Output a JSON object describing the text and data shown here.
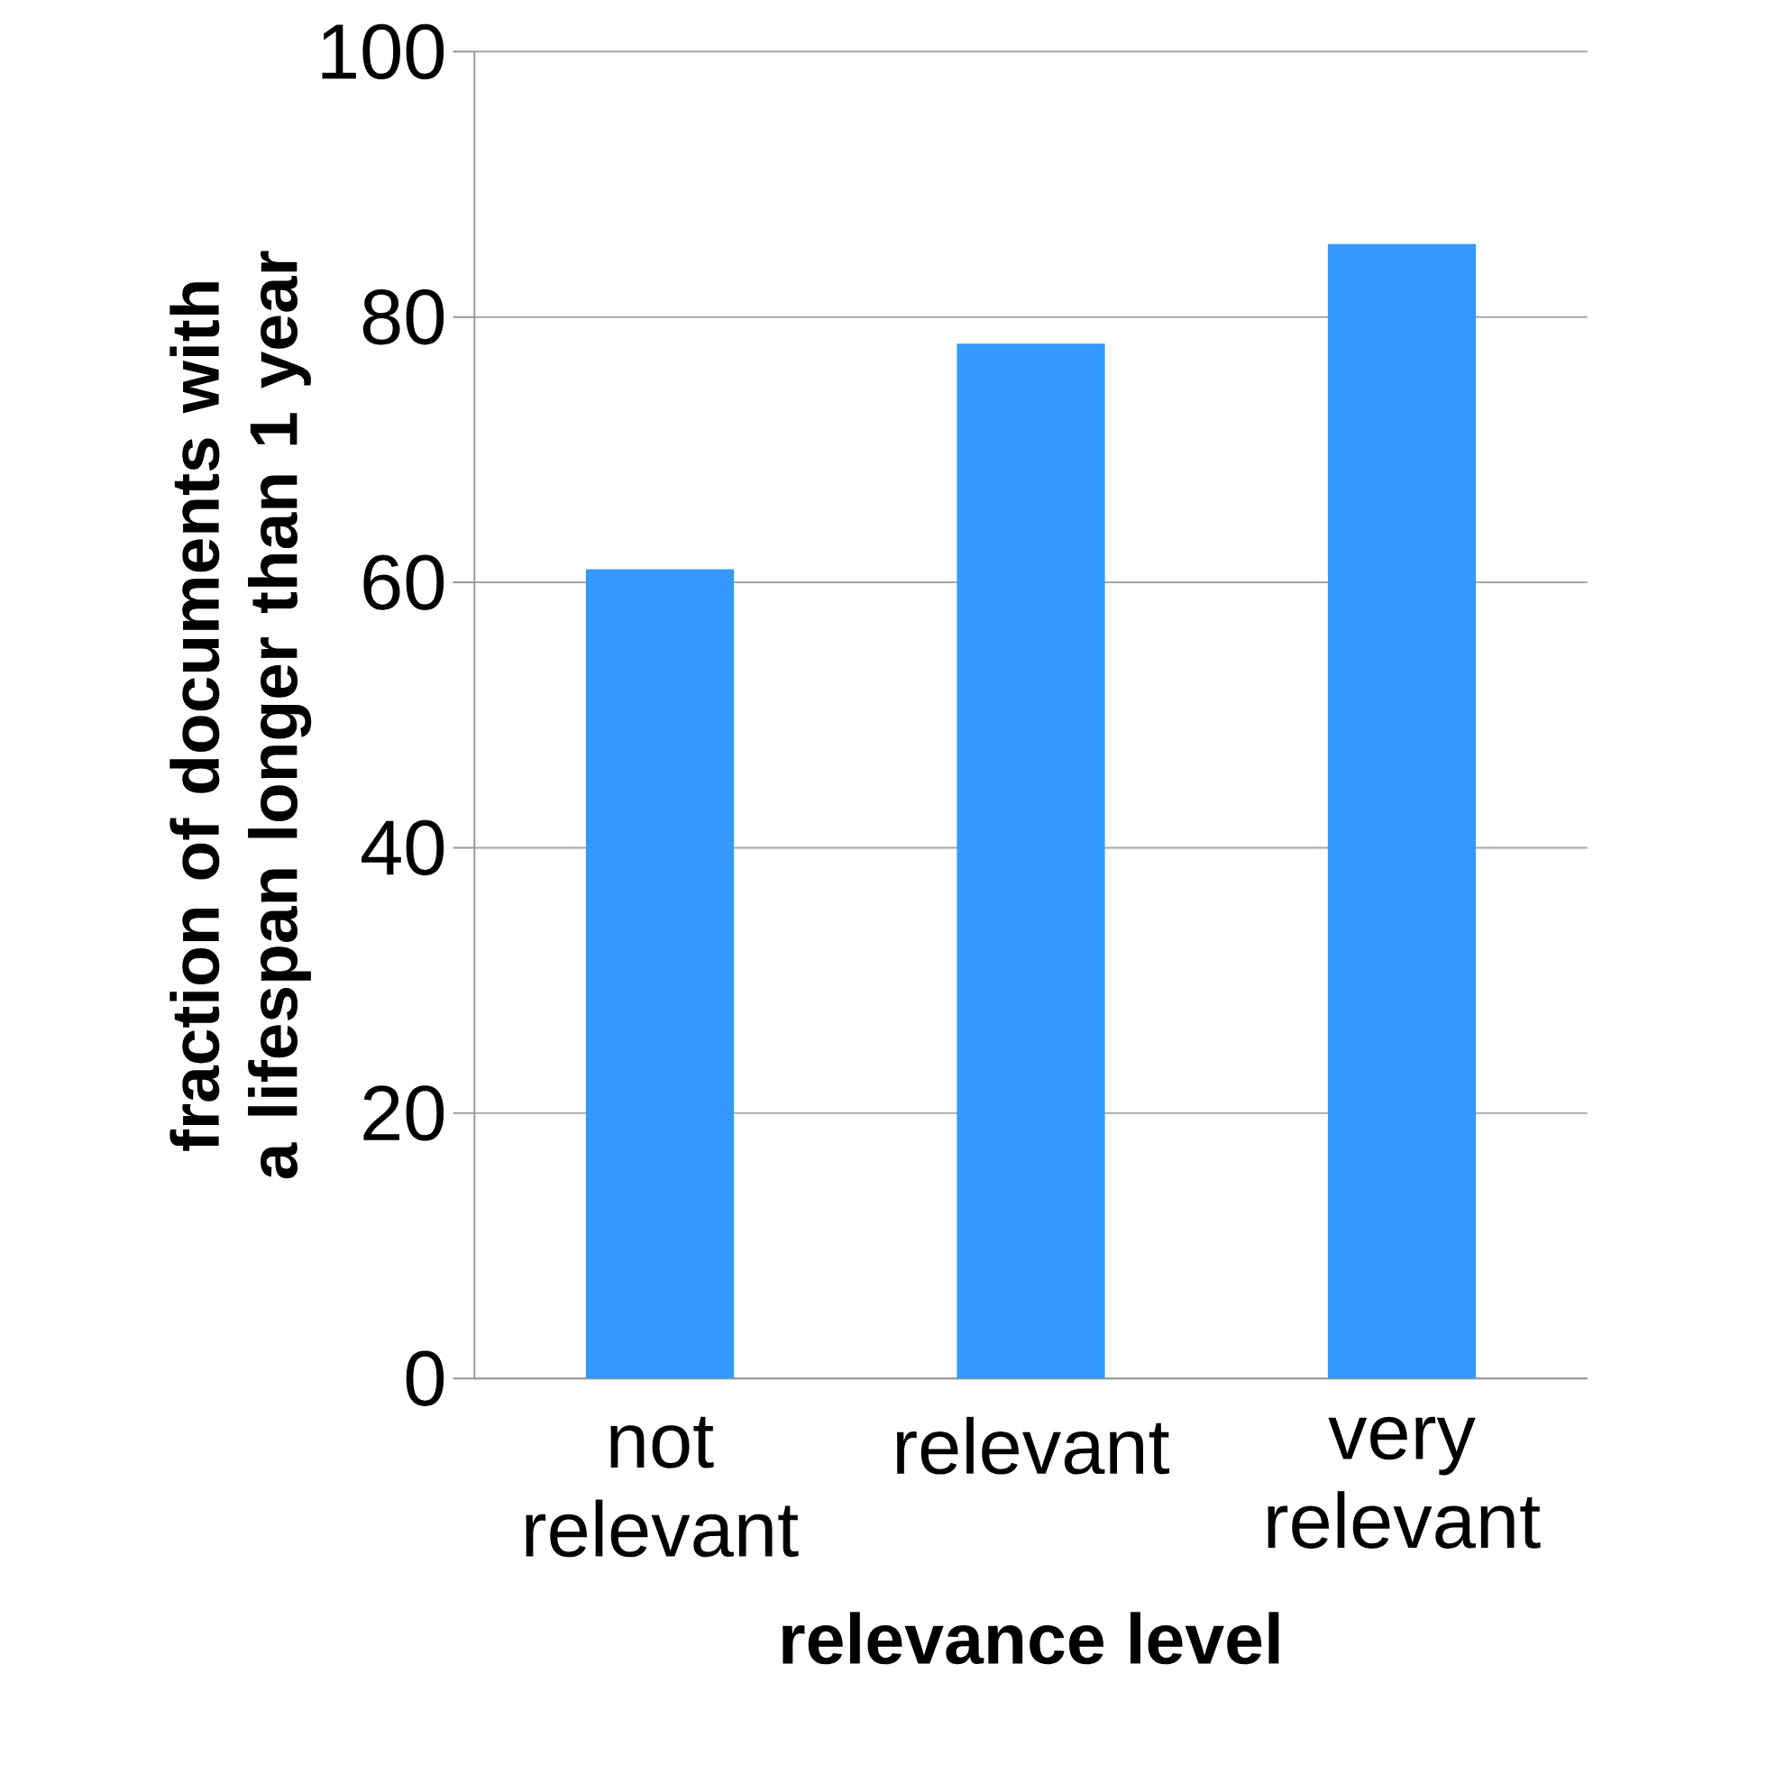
{
  "chart_data": {
    "type": "bar",
    "xlabel": "relevance level",
    "ylabel": "fraction of documents with a lifespan longer than 1 year",
    "categories": [
      "not relevant",
      "relevant",
      "very relevant"
    ],
    "values": [
      61,
      78,
      85.5
    ],
    "color": "#3399ff",
    "ylim": [
      0,
      100
    ],
    "yticks": [
      0,
      20,
      40,
      60,
      80,
      100
    ],
    "grid": "y"
  }
}
